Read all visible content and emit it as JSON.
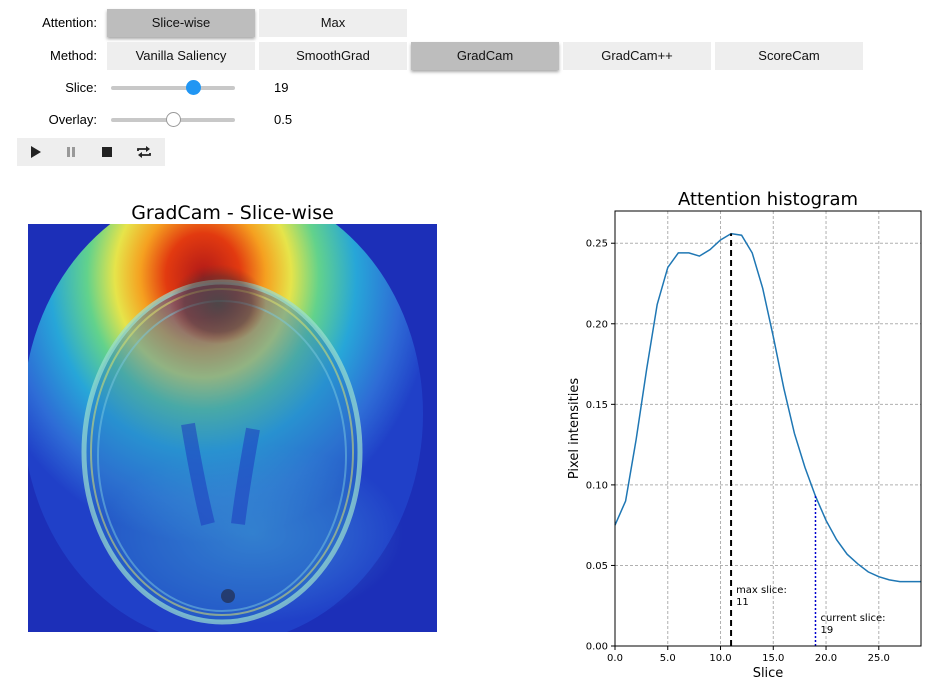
{
  "controls": {
    "attention_label": "Attention:",
    "attention_options": [
      "Slice-wise",
      "Max"
    ],
    "attention_selected": "Slice-wise",
    "method_label": "Method:",
    "method_options": [
      "Vanilla Saliency",
      "SmoothGrad",
      "GradCam",
      "GradCam++",
      "ScoreCam"
    ],
    "method_selected": "GradCam",
    "slice_label": "Slice:",
    "slice_value": "19",
    "slice_fraction": 0.66,
    "overlay_label": "Overlay:",
    "overlay_value": "0.5",
    "overlay_fraction": 0.5,
    "player_icons": [
      "play-icon",
      "pause-icon",
      "stop-icon",
      "repeat-icon"
    ],
    "accent_color": "#2196f3"
  },
  "image_panel": {
    "title": "GradCam - Slice-wise",
    "colormap": "jet"
  },
  "chart_data": {
    "type": "line",
    "title": "Attention histogram",
    "xlabel": "Slice",
    "ylabel": "Pixel intensities",
    "xlim": [
      0,
      29
    ],
    "ylim": [
      0,
      0.27
    ],
    "xticks": [
      "0.0",
      "5.0",
      "10.0",
      "15.0",
      "20.0",
      "25.0"
    ],
    "yticks": [
      "0.00",
      "0.05",
      "0.10",
      "0.15",
      "0.20",
      "0.25"
    ],
    "grid": true,
    "x": [
      0,
      1,
      2,
      3,
      4,
      5,
      6,
      7,
      8,
      9,
      10,
      11,
      12,
      13,
      14,
      15,
      16,
      17,
      18,
      19,
      20,
      21,
      22,
      23,
      24,
      25,
      26,
      27,
      28,
      29
    ],
    "values": [
      0.075,
      0.09,
      0.128,
      0.172,
      0.212,
      0.235,
      0.244,
      0.244,
      0.242,
      0.246,
      0.252,
      0.256,
      0.255,
      0.244,
      0.222,
      0.192,
      0.16,
      0.132,
      0.111,
      0.093,
      0.078,
      0.066,
      0.057,
      0.051,
      0.046,
      0.043,
      0.041,
      0.04,
      0.04,
      0.04
    ],
    "line_color": "#1f77b4",
    "max_slice": {
      "x": 11,
      "label": "max slice:",
      "value": "11",
      "color": "#000000"
    },
    "current_slice": {
      "x": 19,
      "label": "current slice:",
      "value": "19",
      "color": "#0000cc"
    }
  }
}
